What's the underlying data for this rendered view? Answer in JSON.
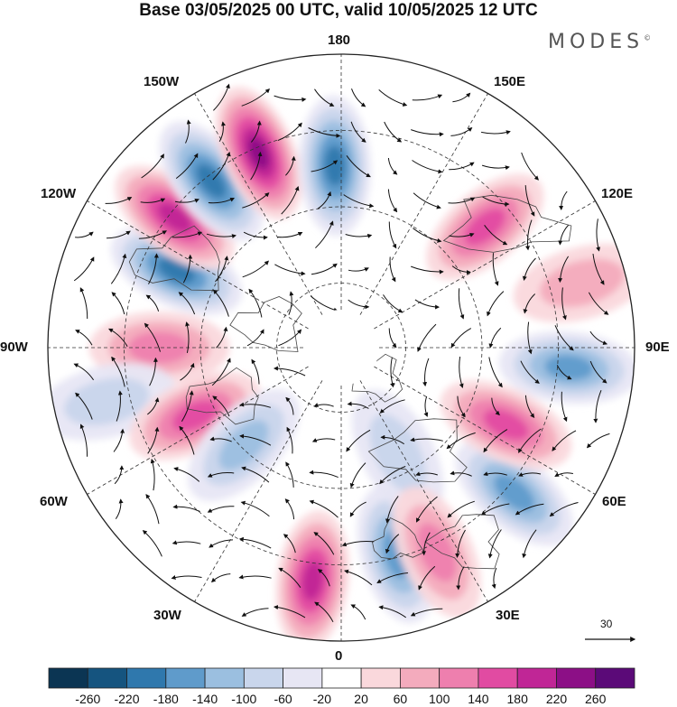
{
  "header": {
    "title": "Base 03/05/2025 00 UTC, valid 10/05/2025 12 UTC",
    "brand": "MODES",
    "brand_mark": "©"
  },
  "map": {
    "projection": "north polar stereographic",
    "longitude_labels": {
      "top": "180",
      "top_right": "150E",
      "right_upper": "120E",
      "right": "90E",
      "right_lower": "60E",
      "bottom_right": "30E",
      "bottom": "0",
      "bottom_left": "30W",
      "left_lower": "60W",
      "left": "90W",
      "left_upper": "120W",
      "top_left": "150W"
    },
    "vector_reference": "30",
    "anomaly_cells": [
      {
        "polar_angle_deg": 205,
        "radius_frac": 0.62,
        "value": -200
      },
      {
        "polar_angle_deg": 218,
        "radius_frac": 0.72,
        "value": 200
      },
      {
        "polar_angle_deg": 232,
        "radius_frac": 0.72,
        "value": -200
      },
      {
        "polar_angle_deg": 247,
        "radius_frac": 0.72,
        "value": 220
      },
      {
        "polar_angle_deg": 268,
        "radius_frac": 0.62,
        "value": -200
      },
      {
        "polar_angle_deg": 320,
        "radius_frac": 0.64,
        "value": 160
      },
      {
        "polar_angle_deg": 180,
        "radius_frac": 0.62,
        "value": 100
      },
      {
        "polar_angle_deg": 167,
        "radius_frac": 0.82,
        "value": -80
      },
      {
        "polar_angle_deg": 155,
        "radius_frac": 0.55,
        "value": 140
      },
      {
        "polar_angle_deg": 135,
        "radius_frac": 0.47,
        "value": -100
      },
      {
        "polar_angle_deg": 97,
        "radius_frac": 0.8,
        "value": 200
      },
      {
        "polar_angle_deg": 75,
        "radius_frac": 0.73,
        "value": -140
      },
      {
        "polar_angle_deg": 62,
        "radius_frac": 0.41,
        "value": -80
      },
      {
        "polar_angle_deg": 65,
        "radius_frac": 0.77,
        "value": 120
      },
      {
        "polar_angle_deg": 40,
        "radius_frac": 0.77,
        "value": -160
      },
      {
        "polar_angle_deg": 25,
        "radius_frac": 0.62,
        "value": 140
      },
      {
        "polar_angle_deg": 5,
        "radius_frac": 0.78,
        "value": -140
      },
      {
        "polar_angle_deg": 345,
        "radius_frac": 0.85,
        "value": 60
      }
    ]
  },
  "colorbar": {
    "labels": [
      "-260",
      "-220",
      "-180",
      "-140",
      "-100",
      "-60",
      "-20",
      "20",
      "60",
      "100",
      "140",
      "180",
      "220",
      "260"
    ],
    "colors": [
      "#0b3553",
      "#15547f",
      "#2f78ad",
      "#5f9bcb",
      "#9bbfe0",
      "#c9d6ec",
      "#e7e6f4",
      "#ffffff",
      "#fad8dc",
      "#f4abbd",
      "#ee7fae",
      "#e14ba2",
      "#c02696",
      "#8c0f86",
      "#5b0a78"
    ]
  }
}
